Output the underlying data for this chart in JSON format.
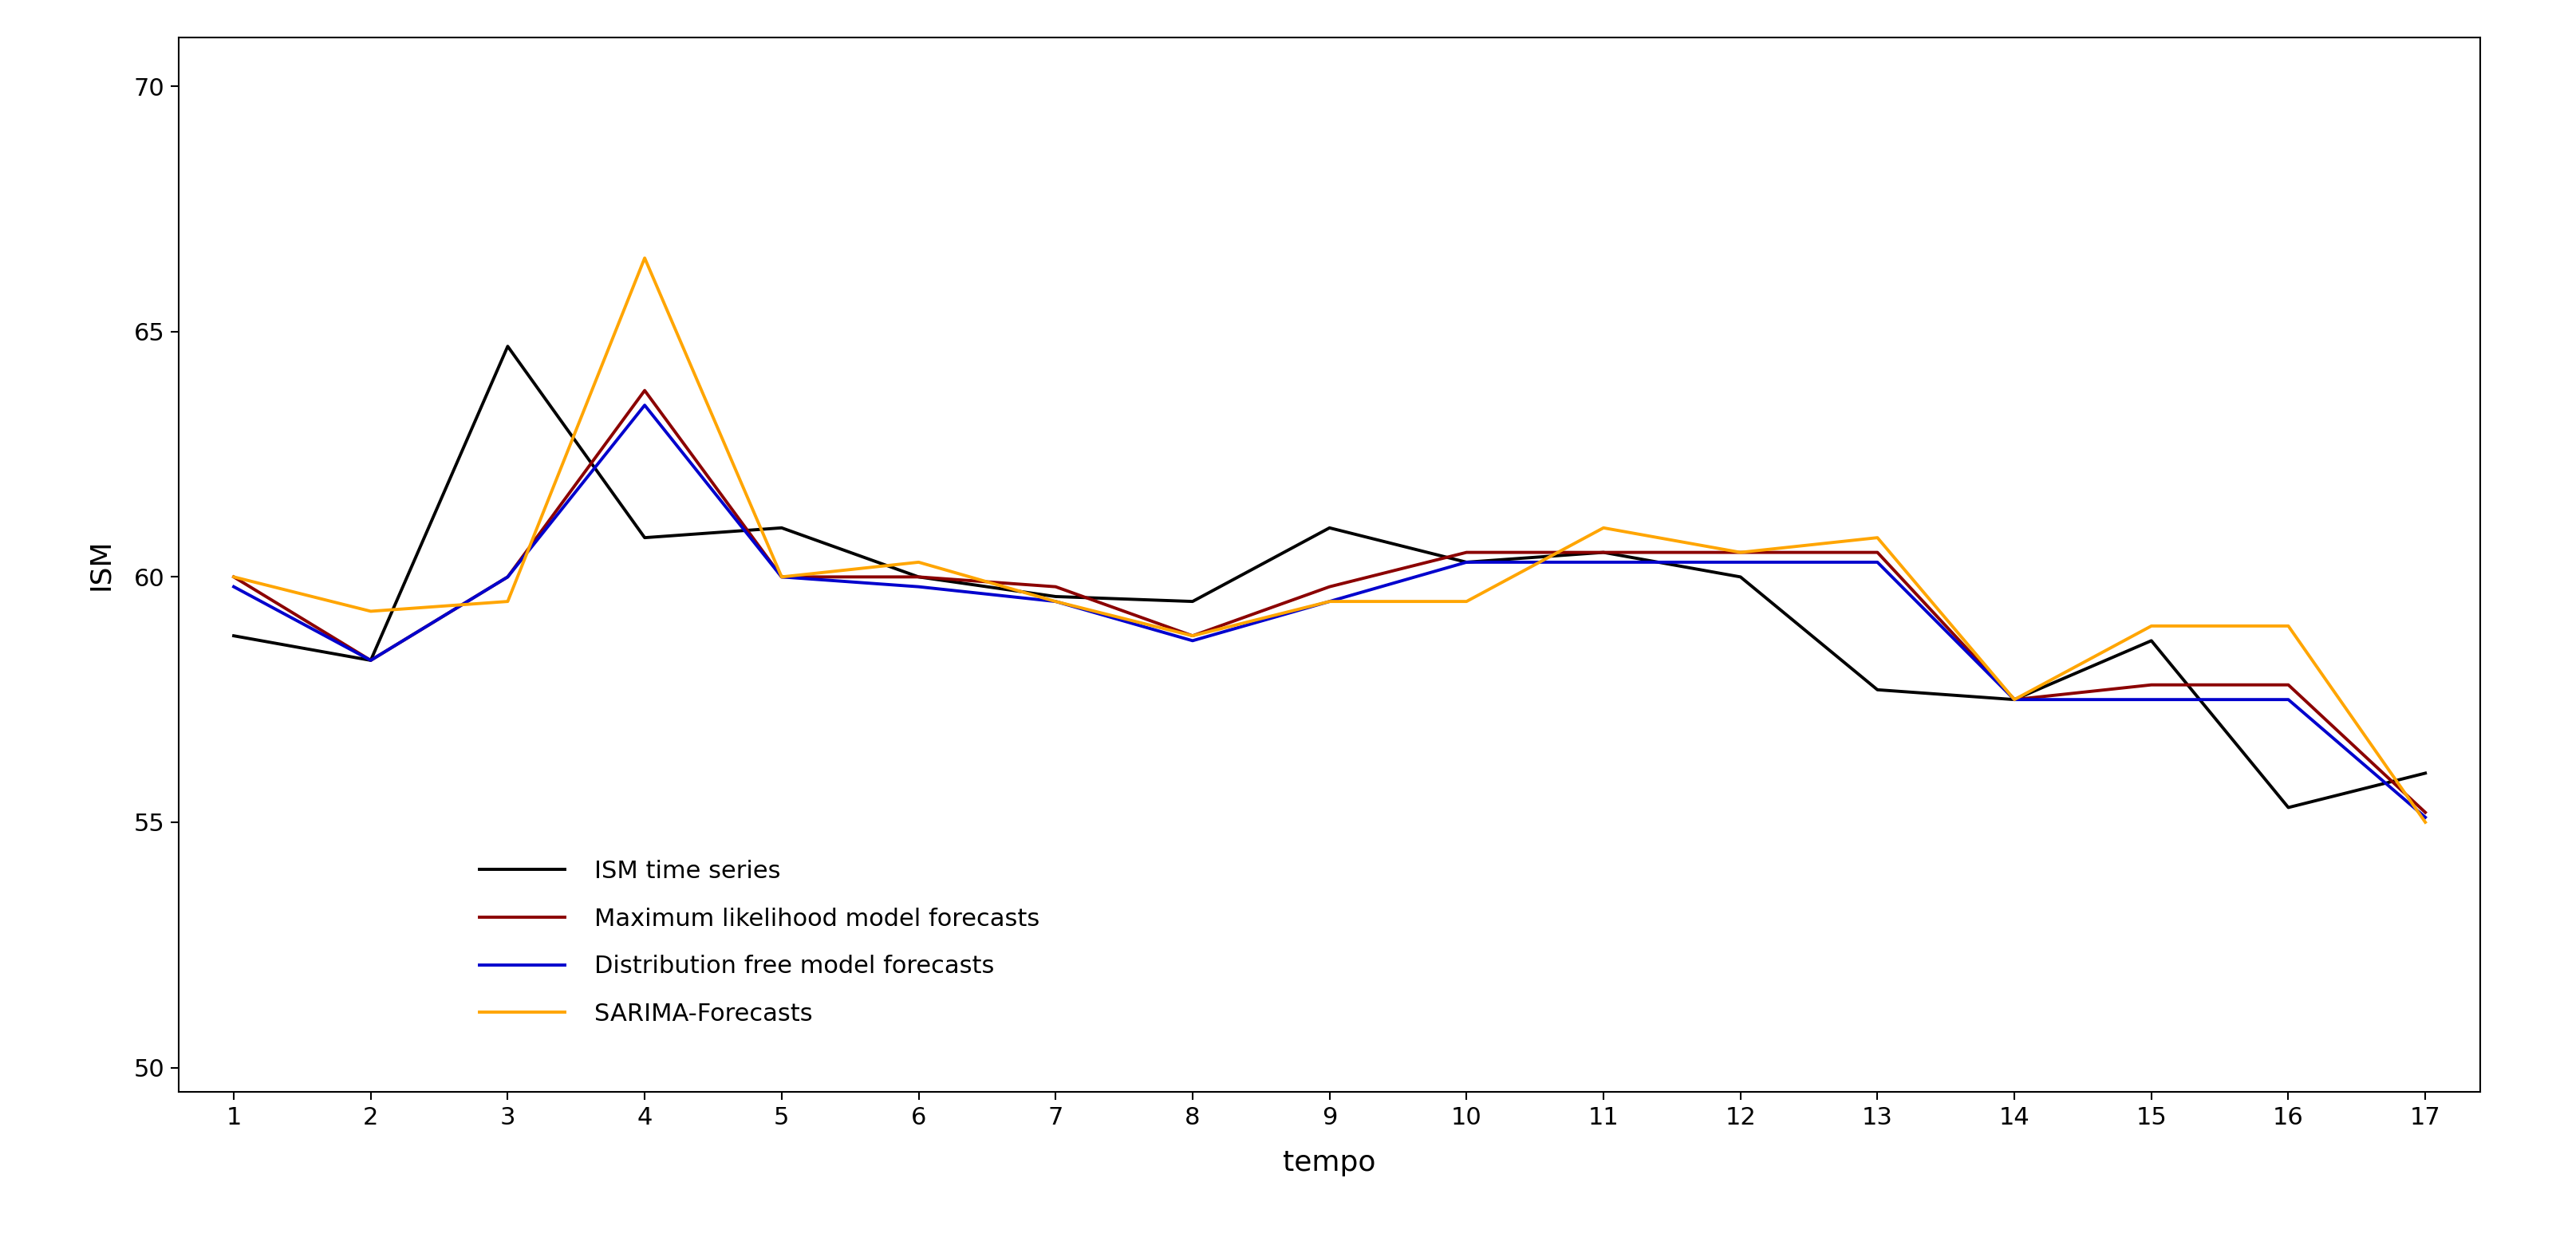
{
  "x": [
    1,
    2,
    3,
    4,
    5,
    6,
    7,
    8,
    9,
    10,
    11,
    12,
    13,
    14,
    15,
    16,
    17
  ],
  "ism": [
    58.8,
    58.3,
    64.7,
    60.8,
    61.0,
    60.0,
    59.6,
    59.5,
    61.0,
    60.3,
    60.5,
    60.0,
    57.7,
    57.5,
    58.7,
    55.3,
    56.0
  ],
  "ml_forecast": [
    60.0,
    58.3,
    60.0,
    63.8,
    60.0,
    60.0,
    59.8,
    58.8,
    59.8,
    60.5,
    60.5,
    60.5,
    60.5,
    57.5,
    57.8,
    57.8,
    55.2
  ],
  "df_forecast": [
    59.8,
    58.3,
    60.0,
    63.5,
    60.0,
    59.8,
    59.5,
    58.7,
    59.5,
    60.3,
    60.3,
    60.3,
    60.3,
    57.5,
    57.5,
    57.5,
    55.1
  ],
  "sarima": [
    60.0,
    59.3,
    59.5,
    66.5,
    60.0,
    60.3,
    59.5,
    58.8,
    59.5,
    59.5,
    61.0,
    60.5,
    60.8,
    57.5,
    59.0,
    59.0,
    55.0
  ],
  "colors": {
    "ism": "#000000",
    "ml": "#8B0000",
    "df": "#0000CD",
    "sarima": "#FFA500"
  },
  "legend_labels": [
    "ISM time series",
    "Maximum likelihood model forecasts",
    "Distribution free model forecasts",
    "SARIMA-Forecasts"
  ],
  "xlabel": "tempo",
  "ylabel": "ISM",
  "ylim": [
    49.5,
    71.0
  ],
  "xlim": [
    0.6,
    17.4
  ],
  "yticks": [
    50,
    55,
    60,
    65,
    70
  ],
  "xticks": [
    1,
    2,
    3,
    4,
    5,
    6,
    7,
    8,
    9,
    10,
    11,
    12,
    13,
    14,
    15,
    16,
    17
  ],
  "linewidth": 2.8,
  "background_color": "#ffffff",
  "tick_font_size": 22,
  "label_font_size": 26,
  "legend_font_size": 22
}
